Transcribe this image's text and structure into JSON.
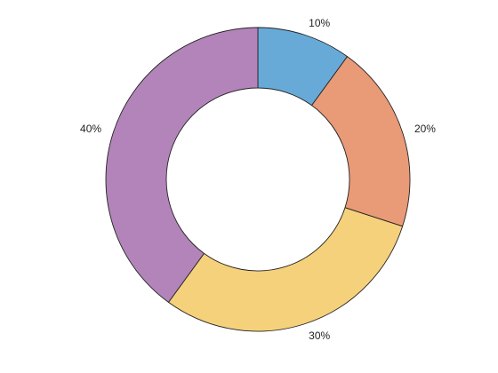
{
  "chart_data": {
    "type": "pie",
    "style": "donut",
    "title": "",
    "start_angle_deg": 90,
    "direction": "clockwise",
    "slices": [
      {
        "label": "10%",
        "value": 10,
        "color": "#67aad7"
      },
      {
        "label": "20%",
        "value": 20,
        "color": "#e99a77"
      },
      {
        "label": "30%",
        "value": 30,
        "color": "#f5d17b"
      },
      {
        "label": "40%",
        "value": 40,
        "color": "#b384ba"
      }
    ],
    "legend": "none"
  }
}
